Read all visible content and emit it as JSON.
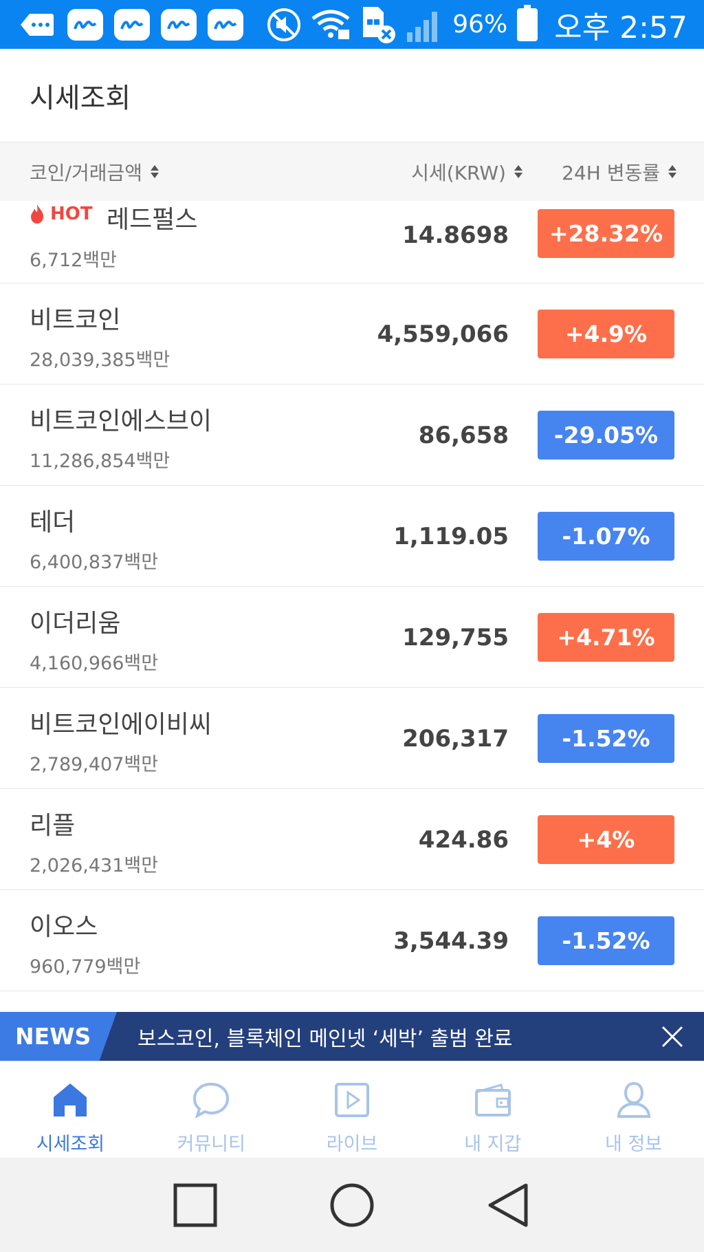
{
  "status_bar": {
    "battery_pct": "96%",
    "time": "오후 2:57",
    "notification_count": 4
  },
  "page": {
    "title": "시세조회"
  },
  "columns": {
    "coin": "코인/거래금액",
    "price": "시세(KRW)",
    "change": "24H 변동률"
  },
  "hot_label": "HOT",
  "coins": [
    {
      "name": "레드펄스",
      "volume": "6,712백만",
      "price": "14.8698",
      "change": "+28.32%",
      "direction": "up",
      "hot": true
    },
    {
      "name": "비트코인",
      "volume": "28,039,385백만",
      "price": "4,559,066",
      "change": "+4.9%",
      "direction": "up"
    },
    {
      "name": "비트코인에스브이",
      "volume": "11,286,854백만",
      "price": "86,658",
      "change": "-29.05%",
      "direction": "down"
    },
    {
      "name": "테더",
      "volume": "6,400,837백만",
      "price": "1,119.05",
      "change": "-1.07%",
      "direction": "down"
    },
    {
      "name": "이더리움",
      "volume": "4,160,966백만",
      "price": "129,755",
      "change": "+4.71%",
      "direction": "up"
    },
    {
      "name": "비트코인에이비씨",
      "volume": "2,789,407백만",
      "price": "206,317",
      "change": "-1.52%",
      "direction": "down"
    },
    {
      "name": "리플",
      "volume": "2,026,431백만",
      "price": "424.86",
      "change": "+4%",
      "direction": "up"
    },
    {
      "name": "이오스",
      "volume": "960,779백만",
      "price": "3,544.39",
      "change": "-1.52%",
      "direction": "down"
    }
  ],
  "news": {
    "tag": "NEWS",
    "headline": "보스코인, 블록체인 메인넷 ‘세박’ 출범 완료"
  },
  "tabs": [
    {
      "label": "시세조회",
      "icon": "home-icon",
      "active": true
    },
    {
      "label": "커뮤니티",
      "icon": "chat-bubble-icon",
      "active": false
    },
    {
      "label": "라이브",
      "icon": "play-icon",
      "active": false
    },
    {
      "label": "내 지갑",
      "icon": "wallet-icon",
      "active": false
    },
    {
      "label": "내 정보",
      "icon": "user-icon",
      "active": false
    }
  ],
  "colors": {
    "status_bar": "#0a84f0",
    "up": "#fd6f4a",
    "down": "#4684f0",
    "news_bg": "#233f7c",
    "tab_active": "#3b78e0",
    "tab_inactive": "#a8c4e8"
  }
}
